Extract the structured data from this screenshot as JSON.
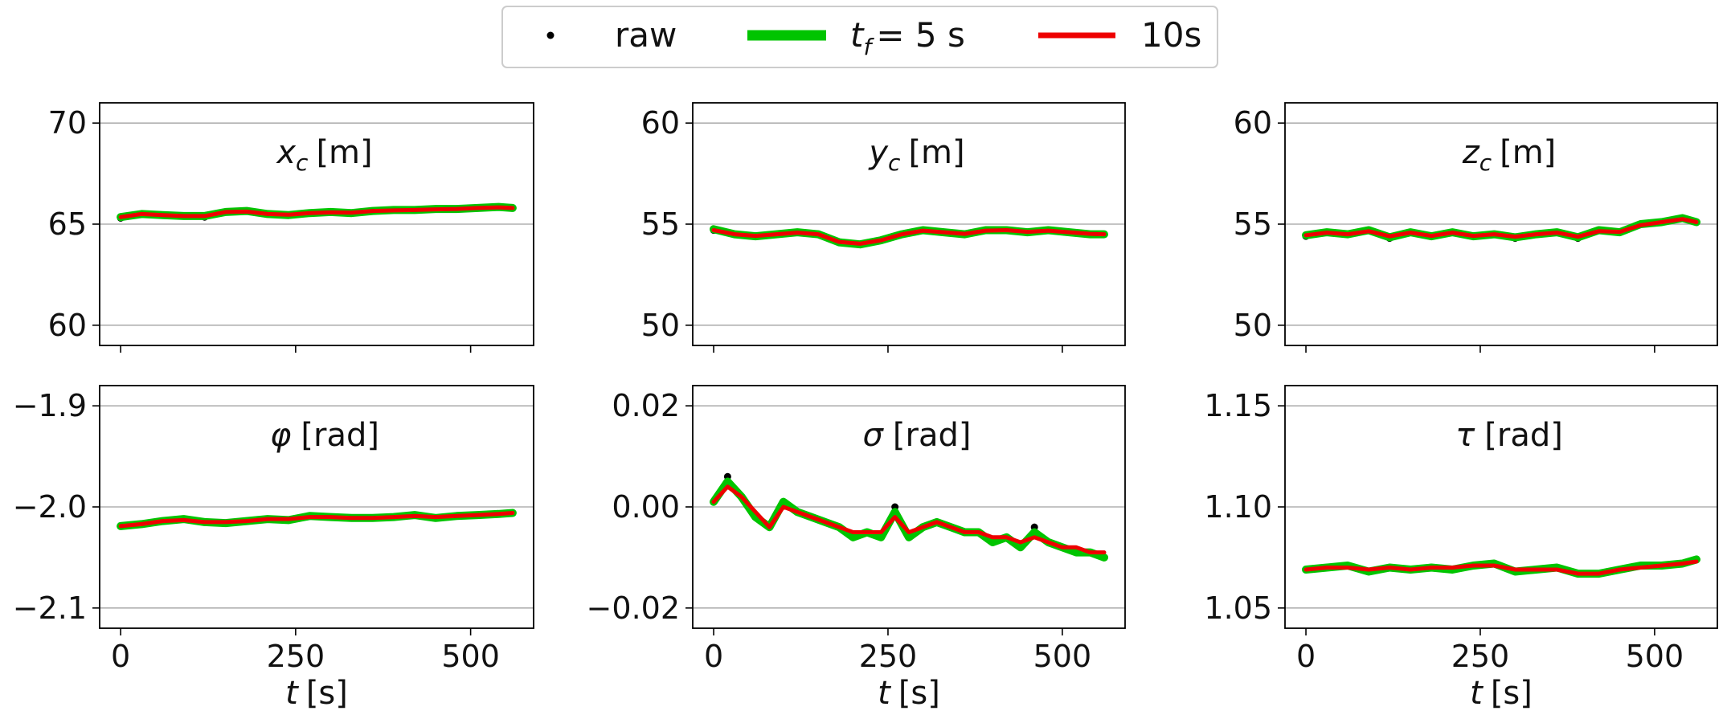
{
  "legend": {
    "entries": [
      {
        "label": "raw",
        "kind": "dot",
        "color": "#000000"
      },
      {
        "label_prefix": "t",
        "label_sub": "f",
        "label_suffix": "= 5 s",
        "kind": "line",
        "color": "#00c400"
      },
      {
        "label": "10s",
        "kind": "line",
        "color": "#ee0000"
      }
    ]
  },
  "chart_data": [
    {
      "type": "line",
      "title": "x_c [m]",
      "title_main": "x",
      "title_sub": "c",
      "title_unit": "[m]",
      "xlabel": "",
      "xlim": [
        -30,
        590
      ],
      "ylim": [
        59,
        71
      ],
      "yticks": [
        60,
        65,
        70
      ],
      "ytick_labels": [
        "60",
        "65",
        "70"
      ],
      "xticks": [
        0,
        250,
        500
      ],
      "xtick_labels": [],
      "t": [
        0,
        30,
        60,
        90,
        120,
        150,
        180,
        210,
        240,
        270,
        300,
        330,
        360,
        390,
        420,
        450,
        480,
        510,
        540,
        560
      ],
      "series": [
        {
          "name": "raw",
          "values": [
            65.3,
            65.5,
            65.45,
            65.4,
            65.35,
            65.6,
            65.65,
            65.5,
            65.45,
            65.55,
            65.6,
            65.55,
            65.65,
            65.7,
            65.7,
            65.75,
            65.75,
            65.8,
            65.85,
            65.8
          ]
        },
        {
          "name": "t_f = 5 s",
          "values": [
            65.35,
            65.5,
            65.45,
            65.4,
            65.4,
            65.6,
            65.65,
            65.5,
            65.45,
            65.55,
            65.6,
            65.55,
            65.65,
            65.7,
            65.7,
            65.75,
            65.75,
            65.8,
            65.85,
            65.8
          ]
        },
        {
          "name": "10s",
          "values": [
            65.35,
            65.5,
            65.45,
            65.4,
            65.4,
            65.6,
            65.62,
            65.5,
            65.47,
            65.55,
            65.58,
            65.57,
            65.65,
            65.68,
            65.7,
            65.73,
            65.75,
            65.8,
            65.83,
            65.8
          ]
        }
      ]
    },
    {
      "type": "line",
      "title": "y_c [m]",
      "title_main": "y",
      "title_sub": "c",
      "title_unit": "[m]",
      "xlabel": "",
      "xlim": [
        -30,
        590
      ],
      "ylim": [
        49,
        61
      ],
      "yticks": [
        50,
        55,
        60
      ],
      "ytick_labels": [
        "50",
        "55",
        "60"
      ],
      "xticks": [
        0,
        250,
        500
      ],
      "xtick_labels": [],
      "t": [
        0,
        30,
        60,
        90,
        120,
        150,
        180,
        210,
        240,
        270,
        300,
        330,
        360,
        390,
        420,
        450,
        480,
        510,
        540,
        560
      ],
      "series": [
        {
          "name": "raw",
          "values": [
            54.7,
            54.5,
            54.4,
            54.5,
            54.6,
            54.5,
            54.1,
            54.0,
            54.2,
            54.5,
            54.7,
            54.6,
            54.5,
            54.7,
            54.7,
            54.6,
            54.7,
            54.6,
            54.5,
            54.5
          ]
        },
        {
          "name": "t_f = 5 s",
          "values": [
            54.75,
            54.5,
            54.4,
            54.5,
            54.6,
            54.5,
            54.1,
            54.0,
            54.2,
            54.5,
            54.7,
            54.6,
            54.5,
            54.7,
            54.7,
            54.6,
            54.7,
            54.6,
            54.5,
            54.5
          ]
        },
        {
          "name": "10s",
          "values": [
            54.7,
            54.5,
            54.42,
            54.5,
            54.58,
            54.5,
            54.12,
            54.03,
            54.2,
            54.5,
            54.68,
            54.6,
            54.52,
            54.68,
            54.7,
            54.62,
            54.68,
            54.6,
            54.52,
            54.5
          ]
        }
      ]
    },
    {
      "type": "line",
      "title": "z_c [m]",
      "title_main": "z",
      "title_sub": "c",
      "title_unit": "[m]",
      "xlabel": "",
      "xlim": [
        -30,
        590
      ],
      "ylim": [
        49,
        61
      ],
      "yticks": [
        50,
        55,
        60
      ],
      "ytick_labels": [
        "50",
        "55",
        "60"
      ],
      "xticks": [
        0,
        250,
        500
      ],
      "xtick_labels": [],
      "t": [
        0,
        30,
        60,
        90,
        120,
        150,
        180,
        210,
        240,
        270,
        300,
        330,
        360,
        390,
        420,
        450,
        480,
        510,
        540,
        560
      ],
      "series": [
        {
          "name": "raw",
          "values": [
            54.4,
            54.6,
            54.5,
            54.7,
            54.3,
            54.6,
            54.4,
            54.6,
            54.4,
            54.5,
            54.3,
            54.5,
            54.6,
            54.3,
            54.7,
            54.6,
            55.0,
            55.1,
            55.3,
            55.1
          ]
        },
        {
          "name": "t_f = 5 s",
          "values": [
            54.45,
            54.6,
            54.5,
            54.7,
            54.35,
            54.6,
            54.4,
            54.6,
            54.4,
            54.5,
            54.35,
            54.5,
            54.6,
            54.35,
            54.7,
            54.6,
            55.0,
            55.1,
            55.3,
            55.1
          ]
        },
        {
          "name": "10s",
          "values": [
            54.45,
            54.58,
            54.5,
            54.65,
            54.4,
            54.58,
            54.42,
            54.58,
            54.42,
            54.5,
            54.38,
            54.5,
            54.58,
            54.38,
            54.65,
            54.62,
            54.95,
            55.1,
            55.25,
            55.1
          ]
        }
      ]
    },
    {
      "type": "line",
      "title": "φ [rad]",
      "title_main": "φ",
      "title_sub": "",
      "title_unit": "[rad]",
      "xlabel": "t [s]",
      "xlim": [
        -30,
        590
      ],
      "ylim": [
        -2.12,
        -1.88
      ],
      "yticks": [
        -2.1,
        -2.0,
        -1.9
      ],
      "ytick_labels": [
        "−2.1",
        "−2.0",
        "−1.9"
      ],
      "xticks": [
        0,
        250,
        500
      ],
      "xtick_labels": [
        "0",
        "250",
        "500"
      ],
      "t": [
        0,
        30,
        60,
        90,
        120,
        150,
        180,
        210,
        240,
        270,
        300,
        330,
        360,
        390,
        420,
        450,
        480,
        510,
        540,
        560
      ],
      "series": [
        {
          "name": "raw",
          "values": [
            -2.019,
            -2.017,
            -2.014,
            -2.012,
            -2.015,
            -2.016,
            -2.014,
            -2.012,
            -2.013,
            -2.009,
            -2.01,
            -2.011,
            -2.011,
            -2.01,
            -2.008,
            -2.011,
            -2.009,
            -2.008,
            -2.007,
            -2.006
          ]
        },
        {
          "name": "t_f = 5 s",
          "values": [
            -2.019,
            -2.017,
            -2.014,
            -2.012,
            -2.015,
            -2.016,
            -2.014,
            -2.012,
            -2.013,
            -2.009,
            -2.01,
            -2.011,
            -2.011,
            -2.01,
            -2.008,
            -2.011,
            -2.009,
            -2.008,
            -2.007,
            -2.006
          ]
        },
        {
          "name": "10s",
          "values": [
            -2.019,
            -2.017,
            -2.014,
            -2.013,
            -2.015,
            -2.015,
            -2.014,
            -2.012,
            -2.012,
            -2.01,
            -2.01,
            -2.011,
            -2.011,
            -2.01,
            -2.009,
            -2.01,
            -2.009,
            -2.008,
            -2.007,
            -2.006
          ]
        }
      ]
    },
    {
      "type": "line",
      "title": "σ [rad]",
      "title_main": "σ",
      "title_sub": "",
      "title_unit": "[rad]",
      "xlabel": "t [s]",
      "xlim": [
        -30,
        590
      ],
      "ylim": [
        -0.024,
        0.024
      ],
      "yticks": [
        -0.02,
        0.0,
        0.02
      ],
      "ytick_labels": [
        "−0.02",
        "0.00",
        "0.02"
      ],
      "xticks": [
        0,
        250,
        500
      ],
      "xtick_labels": [
        "0",
        "250",
        "500"
      ],
      "t": [
        0,
        20,
        40,
        60,
        80,
        100,
        120,
        140,
        160,
        180,
        200,
        220,
        240,
        260,
        280,
        300,
        320,
        340,
        360,
        380,
        400,
        420,
        440,
        460,
        480,
        500,
        520,
        540,
        560
      ],
      "series": [
        {
          "name": "raw",
          "values": [
            0.001,
            0.006,
            0.002,
            -0.002,
            -0.004,
            0.001,
            -0.001,
            -0.002,
            -0.003,
            -0.004,
            -0.006,
            -0.005,
            -0.006,
            0.0,
            -0.006,
            -0.004,
            -0.003,
            -0.004,
            -0.005,
            -0.005,
            -0.007,
            -0.006,
            -0.008,
            -0.004,
            -0.007,
            -0.008,
            -0.009,
            -0.009,
            -0.01
          ]
        },
        {
          "name": "t_f = 5 s",
          "values": [
            0.001,
            0.005,
            0.002,
            -0.002,
            -0.004,
            0.001,
            -0.001,
            -0.002,
            -0.003,
            -0.004,
            -0.006,
            -0.005,
            -0.006,
            -0.001,
            -0.006,
            -0.004,
            -0.003,
            -0.004,
            -0.005,
            -0.005,
            -0.007,
            -0.006,
            -0.008,
            -0.005,
            -0.007,
            -0.008,
            -0.009,
            -0.009,
            -0.01
          ]
        },
        {
          "name": "10s",
          "values": [
            0.001,
            0.004,
            0.002,
            -0.001,
            -0.004,
            0.0,
            -0.001,
            -0.002,
            -0.003,
            -0.004,
            -0.005,
            -0.005,
            -0.005,
            -0.002,
            -0.005,
            -0.004,
            -0.003,
            -0.004,
            -0.005,
            -0.005,
            -0.006,
            -0.006,
            -0.007,
            -0.006,
            -0.007,
            -0.008,
            -0.008,
            -0.009,
            -0.009
          ]
        }
      ]
    },
    {
      "type": "line",
      "title": "τ [rad]",
      "title_main": "τ",
      "title_sub": "",
      "title_unit": "[rad]",
      "xlabel": "t [s]",
      "xlim": [
        -30,
        590
      ],
      "ylim": [
        1.04,
        1.16
      ],
      "yticks": [
        1.05,
        1.1,
        1.15
      ],
      "ytick_labels": [
        "1.05",
        "1.10",
        "1.15"
      ],
      "xticks": [
        0,
        250,
        500
      ],
      "xtick_labels": [
        "0",
        "250",
        "500"
      ],
      "t": [
        0,
        30,
        60,
        90,
        120,
        150,
        180,
        210,
        240,
        270,
        300,
        330,
        360,
        390,
        420,
        450,
        480,
        510,
        540,
        560
      ],
      "series": [
        {
          "name": "raw",
          "values": [
            1.069,
            1.07,
            1.071,
            1.068,
            1.07,
            1.069,
            1.07,
            1.069,
            1.071,
            1.072,
            1.068,
            1.069,
            1.07,
            1.067,
            1.067,
            1.069,
            1.071,
            1.071,
            1.072,
            1.074
          ]
        },
        {
          "name": "t_f = 5 s",
          "values": [
            1.069,
            1.07,
            1.071,
            1.068,
            1.07,
            1.069,
            1.07,
            1.069,
            1.071,
            1.072,
            1.068,
            1.069,
            1.07,
            1.067,
            1.067,
            1.069,
            1.071,
            1.071,
            1.072,
            1.074
          ]
        },
        {
          "name": "10s",
          "values": [
            1.069,
            1.07,
            1.07,
            1.069,
            1.07,
            1.069,
            1.07,
            1.07,
            1.071,
            1.071,
            1.069,
            1.069,
            1.069,
            1.067,
            1.067,
            1.069,
            1.07,
            1.071,
            1.072,
            1.073
          ]
        }
      ]
    }
  ]
}
